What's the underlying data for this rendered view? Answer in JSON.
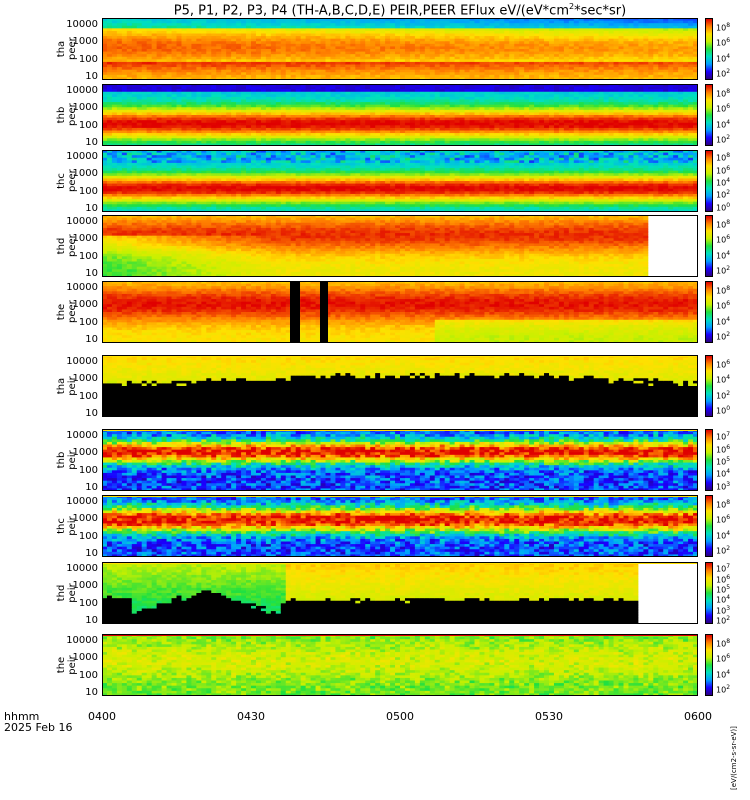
{
  "title": "P5, P1, P2, P3, P4 (TH-A,B,C,D,E) PEIR,PEER EFlux eV/(eV*cm",
  "title_sup": "2",
  "title_tail": "*sec*sr)",
  "xaxis": {
    "caption_line1": "hhmm",
    "caption_line2": "2025 Feb 16"
  },
  "colorbar_unit_esa": "[eV/(cm2-s-sr-eV)]",
  "chart_data": [
    {
      "type": "heatmap",
      "ylabel": "tha\npeer",
      "yscale": "log",
      "ylim": [
        7,
        25000
      ],
      "yticks": [
        "10000",
        "1000",
        "100",
        "10"
      ],
      "xlim": [
        "0400",
        "0600"
      ],
      "xticks": [
        "0400",
        "0430",
        "0500",
        "0530",
        "0600"
      ],
      "colorbar": {
        "scale": "log",
        "ticks": [
          "10^8",
          "10^6",
          "10^4",
          "10^2"
        ]
      }
    },
    {
      "type": "heatmap",
      "ylabel": "thb\npeer",
      "yscale": "log",
      "ylim": [
        7,
        25000
      ],
      "yticks": [
        "10000",
        "1000",
        "100",
        "10"
      ],
      "xlim": [
        "0400",
        "0600"
      ],
      "colorbar": {
        "scale": "log",
        "ticks": [
          "10^8",
          "10^6",
          "10^4",
          "10^2"
        ]
      }
    },
    {
      "type": "heatmap",
      "ylabel": "thc\npeer",
      "yscale": "log",
      "ylim": [
        7,
        25000
      ],
      "yticks": [
        "10000",
        "1000",
        "100",
        "10"
      ],
      "xlim": [
        "0400",
        "0600"
      ],
      "colorbar": {
        "scale": "log",
        "ticks": [
          "10^8",
          "10^6",
          "10^4",
          "10^2",
          "10^0"
        ]
      }
    },
    {
      "type": "heatmap",
      "ylabel": "thd\npeer",
      "yscale": "log",
      "ylim": [
        7,
        25000
      ],
      "yticks": [
        "10000",
        "1000",
        "100",
        "10"
      ],
      "xlim": [
        "0400",
        "0600"
      ],
      "colorbar": {
        "scale": "log",
        "ticks": [
          "10^8",
          "10^6",
          "10^4",
          "10^2"
        ]
      }
    },
    {
      "type": "heatmap",
      "ylabel": "the\npeer",
      "yscale": "log",
      "ylim": [
        7,
        25000
      ],
      "yticks": [
        "10000",
        "1000",
        "100",
        "10"
      ],
      "xlim": [
        "0400",
        "0600"
      ],
      "colorbar": {
        "scale": "log",
        "ticks": [
          "10^8",
          "10^6",
          "10^4",
          "10^2"
        ]
      }
    },
    {
      "type": "heatmap",
      "ylabel": "tha\npeir",
      "yscale": "log",
      "ylim": [
        7,
        25000
      ],
      "yticks": [
        "10000",
        "1000",
        "100",
        "10"
      ],
      "xlim": [
        "0400",
        "0600"
      ],
      "colorbar": {
        "scale": "log",
        "ticks": [
          "10^6",
          "10^4",
          "10^2",
          "10^0"
        ]
      }
    },
    {
      "type": "heatmap",
      "ylabel": "thb\npeir",
      "yscale": "log",
      "ylim": [
        7,
        25000
      ],
      "yticks": [
        "10000",
        "1000",
        "100",
        "10"
      ],
      "xlim": [
        "0400",
        "0600"
      ],
      "colorbar": {
        "scale": "log",
        "ticks": [
          "10^7",
          "10^6",
          "10^5",
          "10^4",
          "10^3"
        ]
      }
    },
    {
      "type": "heatmap",
      "ylabel": "thc\npeir",
      "yscale": "log",
      "ylim": [
        7,
        25000
      ],
      "yticks": [
        "10000",
        "1000",
        "100",
        "10"
      ],
      "xlim": [
        "0400",
        "0600"
      ],
      "colorbar": {
        "scale": "log",
        "ticks": [
          "10^8",
          "10^6",
          "10^4",
          "10^2"
        ]
      }
    },
    {
      "type": "heatmap",
      "ylabel": "thd\npeir",
      "yscale": "log",
      "ylim": [
        7,
        25000
      ],
      "yticks": [
        "10000",
        "1000",
        "100",
        "10"
      ],
      "xlim": [
        "0400",
        "0600"
      ],
      "colorbar": {
        "scale": "log",
        "ticks": [
          "10^7",
          "10^6",
          "10^5",
          "10^4",
          "10^3",
          "10^2"
        ]
      }
    },
    {
      "type": "heatmap",
      "ylabel": "the\npeir",
      "yscale": "log",
      "ylim": [
        7,
        25000
      ],
      "yticks": [
        "10000",
        "1000",
        "100",
        "10"
      ],
      "xlim": [
        "0400",
        "0600"
      ],
      "colorbar": {
        "scale": "log",
        "ticks": [
          "10^8",
          "10^6",
          "10^4",
          "10^2"
        ]
      }
    }
  ]
}
